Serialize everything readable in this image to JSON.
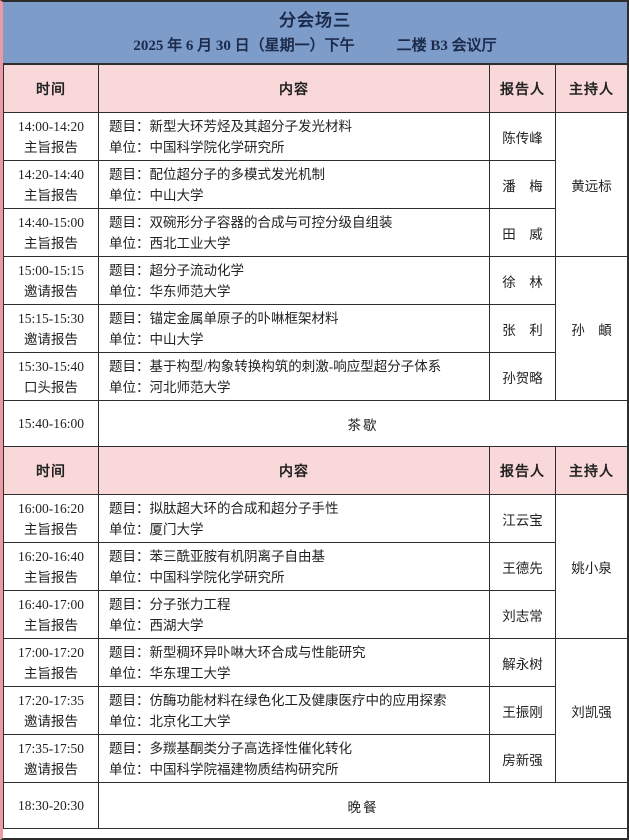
{
  "header": {
    "title": "分会场三",
    "date": "2025 年 6 月 30 日（星期一）下午",
    "venue": "二楼 B3 会议厅"
  },
  "columns": {
    "time": "时间",
    "content": "内容",
    "speaker": "报告人",
    "chair": "主持人"
  },
  "labels": {
    "title_prefix": "题目：",
    "org_prefix": "单位："
  },
  "sessions": [
    {
      "rows": [
        {
          "time": "14:00-14:20",
          "type": "主旨报告",
          "title": "新型大环芳烃及其超分子发光材料",
          "org": "中国科学院化学研究所",
          "speaker": "陈传峰"
        },
        {
          "time": "14:20-14:40",
          "type": "主旨报告",
          "title": "配位超分子的多模式发光机制",
          "org": "中山大学",
          "speaker": "潘　梅"
        },
        {
          "time": "14:40-15:00",
          "type": "主旨报告",
          "title": "双碗形分子容器的合成与可控分级自组装",
          "org": "西北工业大学",
          "speaker": "田　威"
        },
        {
          "time": "15:00-15:15",
          "type": "邀请报告",
          "title": "超分子流动化学",
          "org": "华东师范大学",
          "speaker": "徐　林"
        },
        {
          "time": "15:15-15:30",
          "type": "邀请报告",
          "title": "锚定金属单原子的卟啉框架材料",
          "org": "中山大学",
          "speaker": "张　利"
        },
        {
          "time": "15:30-15:40",
          "type": "口头报告",
          "title": "基于构型/构象转换构筑的刺激-响应型超分子体系",
          "org": "河北师范大学",
          "speaker": "孙贺略"
        }
      ],
      "chairs": [
        {
          "name": "黄远标",
          "span": 3
        },
        {
          "name": "孙　頔",
          "span": 3
        }
      ],
      "after_break": {
        "time": "15:40-16:00",
        "label": "茶歇"
      }
    },
    {
      "rows": [
        {
          "time": "16:00-16:20",
          "type": "主旨报告",
          "title": "拟肽超大环的合成和超分子手性",
          "org": "厦门大学",
          "speaker": "江云宝"
        },
        {
          "time": "16:20-16:40",
          "type": "主旨报告",
          "title": "苯三酰亚胺有机阴离子自由基",
          "org": "中国科学院化学研究所",
          "speaker": "王德先"
        },
        {
          "time": "16:40-17:00",
          "type": "主旨报告",
          "title": "分子张力工程",
          "org": "西湖大学",
          "speaker": "刘志常"
        },
        {
          "time": "17:00-17:20",
          "type": "主旨报告",
          "title": "新型稠环异卟啉大环合成与性能研究",
          "org": "华东理工大学",
          "speaker": "解永树"
        },
        {
          "time": "17:20-17:35",
          "type": "邀请报告",
          "title": "仿酶功能材料在绿色化工及健康医疗中的应用探索",
          "org": "北京化工大学",
          "speaker": "王振刚"
        },
        {
          "time": "17:35-17:50",
          "type": "邀请报告",
          "title": "多羰基酮类分子高选择性催化转化",
          "org": "中国科学院福建物质结构研究所",
          "speaker": "房新强"
        }
      ],
      "chairs": [
        {
          "name": "姚小泉",
          "span": 3
        },
        {
          "name": "刘凯强",
          "span": 3
        }
      ],
      "after_break": {
        "time": "18:30-20:30",
        "label": "晚餐"
      }
    }
  ],
  "colors": {
    "header_blue": "#7d9cca",
    "header_pink": "#f8d8d8",
    "border_dark": "#2e2e2e",
    "outer_left_pink": "#ec9ba4",
    "title_text": "#1b2a4a",
    "body_text": "#222222"
  }
}
